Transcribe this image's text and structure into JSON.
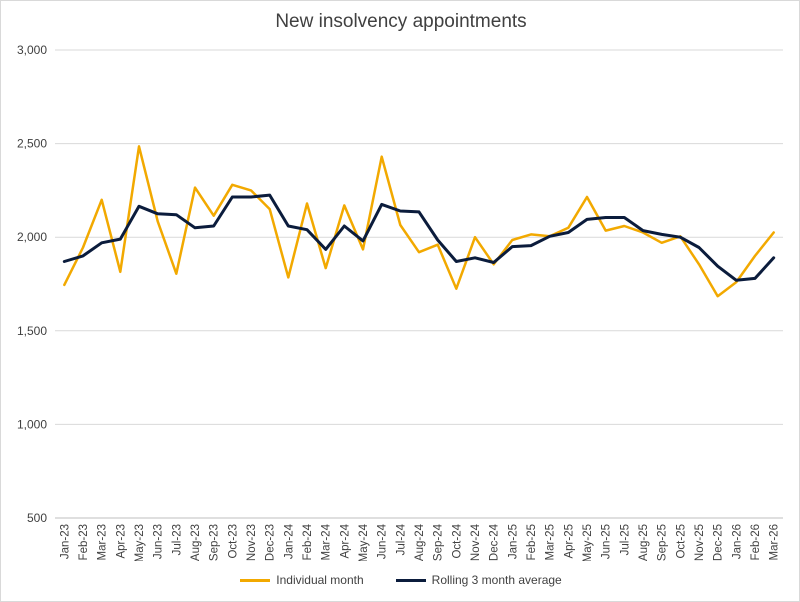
{
  "chart_data": {
    "type": "line",
    "title": "New insolvency appointments",
    "xlabel": "",
    "ylabel": "",
    "ylim": [
      500,
      3000
    ],
    "yticks": [
      500,
      1000,
      1500,
      2000,
      2500,
      3000
    ],
    "ytick_labels": [
      "500",
      "1,000",
      "1,500",
      "2,000",
      "2,500",
      "3,000"
    ],
    "grid": true,
    "legend_position": "bottom",
    "categories": [
      "Jan-23",
      "Feb-23",
      "Mar-23",
      "Apr-23",
      "May-23",
      "Jun-23",
      "Jul-23",
      "Aug-23",
      "Sep-23",
      "Oct-23",
      "Nov-23",
      "Dec-23",
      "Jan-24",
      "Feb-24",
      "Mar-24",
      "Apr-24",
      "May-24",
      "Jun-24",
      "Jul-24",
      "Aug-24",
      "Sep-24",
      "Oct-24",
      "Nov-24",
      "Dec-24",
      "Jan-25",
      "Feb-25",
      "Mar-25",
      "Apr-25",
      "May-25",
      "Jun-25",
      "Jul-25",
      "Aug-25",
      "Sep-25",
      "Oct-25",
      "Nov-25",
      "Dec-25",
      "Jan-26",
      "Feb-26",
      "Mar-26"
    ],
    "series": [
      {
        "name": "Individual month",
        "color": "#f2a900",
        "values": [
          1745,
          1945,
          2200,
          1815,
          2485,
          2085,
          1805,
          2265,
          2115,
          2280,
          2250,
          2150,
          1785,
          2180,
          1835,
          2170,
          1935,
          2430,
          2065,
          1920,
          1960,
          1725,
          2000,
          1855,
          1985,
          2015,
          2005,
          2050,
          2215,
          2035,
          2060,
          2025,
          1970,
          2005,
          1855,
          1685,
          1760,
          1900,
          2025
        ]
      },
      {
        "name": "Rolling 3 month average",
        "color": "#0b1c3c",
        "values": [
          1870,
          1900,
          1970,
          1990,
          2165,
          2125,
          2120,
          2050,
          2060,
          2215,
          2215,
          2225,
          2060,
          2040,
          1935,
          2060,
          1980,
          2175,
          2140,
          2135,
          1985,
          1870,
          1890,
          1865,
          1950,
          1955,
          2005,
          2025,
          2095,
          2105,
          2105,
          2035,
          2015,
          2000,
          1945,
          1845,
          1770,
          1780,
          1890
        ]
      }
    ]
  }
}
